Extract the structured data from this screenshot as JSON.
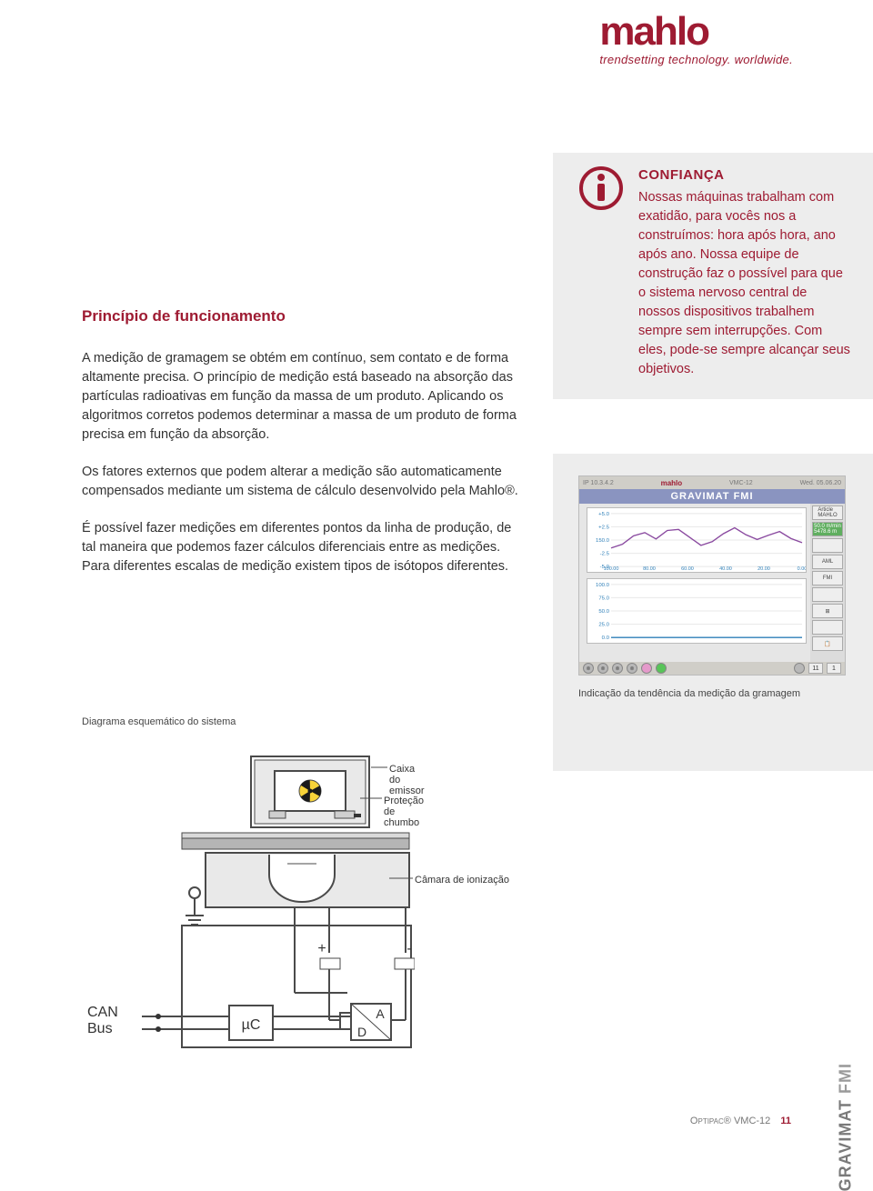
{
  "brand": {
    "name": "mahlo",
    "tagline": "trendsetting technology. worldwide.",
    "color": "#9e1b32"
  },
  "main": {
    "heading": "Princípio de funcionamento",
    "para1": "A medição de gramagem se obtém em contínuo, sem contato e de forma altamente precisa. O princípio de medição está baseado na absorção das partículas radioativas em função da massa de um produto. Aplicando os algoritmos corretos podemos determinar a massa de um produto de forma precisa em função da absorção.",
    "para2": "Os fatores externos que podem alterar a medição são automaticamente compensados mediante um sistema de cálculo desenvolvido pela Mahlo®.",
    "para3": "É possível fazer medições em diferentes pontos da linha de produção, de tal maneira que podemos fazer cálculos diferenciais entre as medições. Para diferentes escalas de medição existem tipos de isótopos diferentes."
  },
  "sidebar": {
    "title": "CONFIANÇA",
    "body": "Nossas máquinas trabalham com exatidão, para vocês nos a construímos: hora após hora, ano após ano. Nossa equipe de construção faz o possível para que o sistema nervoso central de nossos dispositivos trabalhem sempre sem interrupções. Com eles, pode-se sempre alcançar seus objetivos.",
    "caption": "Indicação da tendência da medição da gramagem"
  },
  "hmi": {
    "topbar_left": "IP 10.3.4.2",
    "topbar_brand": "mahlo",
    "topbar_product": "VMC-12",
    "topbar_right": "Wed. 05.06.20",
    "title": "GRAVIMAT FMI",
    "right_buttons": [
      "Article\nMAHLO",
      "50.0 m/min\n5478.6 m",
      "",
      "AML",
      "FMI",
      "",
      "⊞",
      "",
      "📋"
    ],
    "chart_top": {
      "line_color": "#8a4aa0",
      "y_ticks": [
        "+5.0",
        "+2.5",
        "150.0",
        "-2.5",
        "-5.0"
      ],
      "x_ticks": [
        "100.00",
        "80.00",
        "60.00",
        "40.00",
        "20.00",
        "0.00"
      ],
      "data": [
        148.5,
        149.2,
        150.8,
        151.4,
        150.2,
        151.8,
        152.0,
        150.5,
        149.0,
        149.7,
        151.2,
        152.3,
        151.0,
        150.1,
        150.9,
        151.6,
        150.3,
        149.5
      ]
    },
    "chart_bot": {
      "line_color": "#2e7fb8",
      "y_ticks": [
        "100.0",
        "75.0",
        "50.0",
        "25.0",
        "0.0"
      ],
      "data": [
        0,
        0,
        0,
        0,
        0,
        0,
        0,
        0,
        0,
        0,
        0,
        0,
        0,
        0,
        0,
        0,
        0,
        0
      ]
    },
    "bottom_dots": 5,
    "background_color": "#dedede"
  },
  "diagram": {
    "caption": "Diagrama esquemático do sistema",
    "labels": {
      "emitter": "Caixa do emissor",
      "shield": "Proteção de chumbo",
      "chamber": "Câmara de ionização",
      "canbus": "CAN\nBus",
      "uc": "µC",
      "ad": "A\nD",
      "plus": "+",
      "minus": "-"
    },
    "colors": {
      "stroke": "#4a4a4a",
      "fill_light": "#e9e9e9",
      "fill_dark": "#b5b5b5",
      "radio_yellow": "#f8d339",
      "radio_black": "#1a1a1a"
    }
  },
  "footer": {
    "vertical": "GRAVIMAT",
    "vertical_suffix": "FMI",
    "doc": "Optipac® VMC-12",
    "page": "11"
  }
}
